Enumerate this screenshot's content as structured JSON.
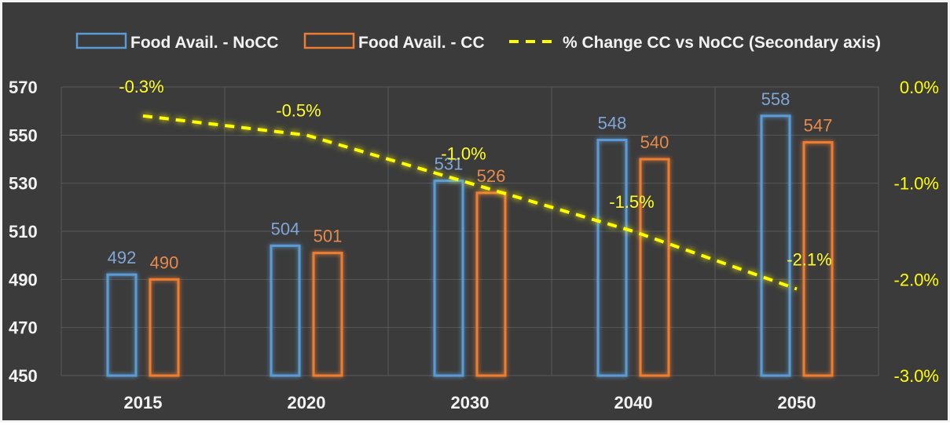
{
  "chart_data": {
    "type": "bar",
    "categories": [
      "2015",
      "2020",
      "2030",
      "2040",
      "2050"
    ],
    "series": [
      {
        "name": "Food Avail. - NoCC",
        "kind": "bar",
        "axis": "primary",
        "color": "#5b9bd5",
        "values": [
          492,
          504,
          531,
          548,
          558
        ],
        "labels": [
          "492",
          "504",
          "531",
          "548",
          "558"
        ]
      },
      {
        "name": "Food Avail. - CC",
        "kind": "bar",
        "axis": "primary",
        "color": "#ed7d31",
        "values": [
          490,
          501,
          526,
          540,
          547
        ],
        "labels": [
          "490",
          "501",
          "526",
          "540",
          "547"
        ]
      },
      {
        "name": "% Change CC vs NoCC (Secondary axis)",
        "kind": "line",
        "style": "dashed",
        "axis": "secondary",
        "color": "#ffff00",
        "values": [
          -0.3,
          -0.5,
          -1.0,
          -1.5,
          -2.1
        ],
        "labels": [
          "-0.3%",
          "-0.5%",
          "-1.0%",
          "-1.5%",
          "-2.1%"
        ]
      }
    ],
    "y_primary": {
      "range": [
        450,
        570
      ],
      "ticks": [
        "450",
        "470",
        "490",
        "510",
        "530",
        "550",
        "570"
      ]
    },
    "y_secondary": {
      "range": [
        -3.0,
        0.0
      ],
      "ticks": [
        "-3.0%",
        "-2.0%",
        "-1.0%",
        "0.0%"
      ]
    },
    "grid": true,
    "legend_position": "top",
    "background": "#3b3b3b"
  }
}
